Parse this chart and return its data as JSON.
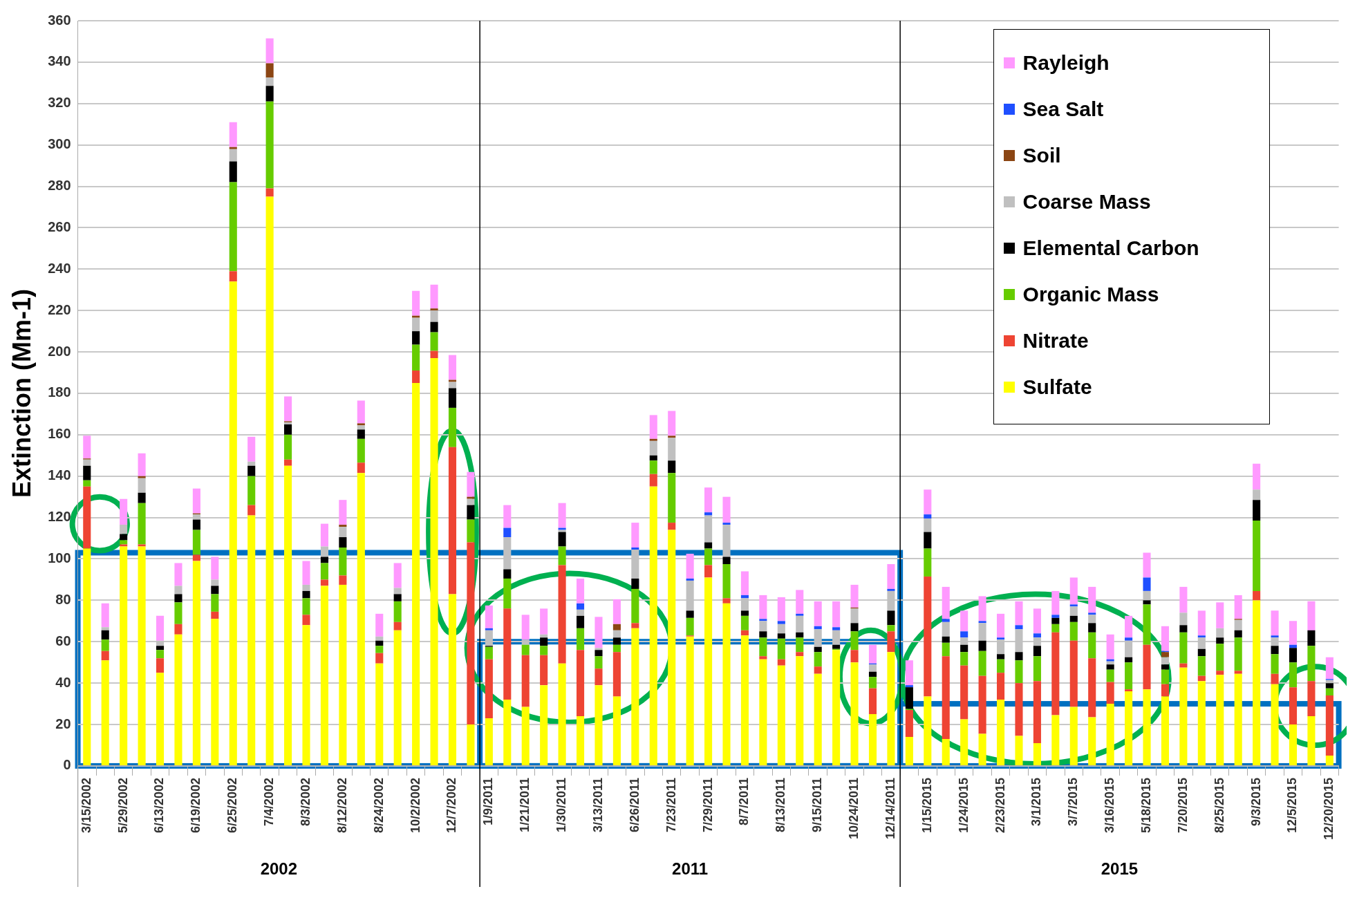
{
  "chart_data": {
    "type": "bar",
    "stacked": true,
    "ylabel": "Extinction (Mm-1)",
    "ylim": [
      0,
      360
    ],
    "yticks": [
      0,
      20,
      40,
      60,
      80,
      100,
      120,
      140,
      160,
      180,
      200,
      220,
      240,
      260,
      280,
      300,
      320,
      340,
      360
    ],
    "grid": "y",
    "legend": "top right",
    "annotations": [
      "2002",
      "2011",
      "2015"
    ],
    "categories": [
      "3/15/2002",
      null,
      "5/29/2002",
      null,
      "6/13/2002",
      null,
      "6/19/2002",
      null,
      "6/25/2002",
      null,
      "7/4/2002",
      null,
      "8/3/2002",
      null,
      "8/12/2002",
      null,
      "8/24/2002",
      null,
      "10/2/2002",
      null,
      "12/7/2002",
      null,
      "1/9/2011",
      null,
      "1/21/2011",
      null,
      "1/30/2011",
      null,
      "3/13/2011",
      null,
      "6/26/2011",
      null,
      "7/23/2011",
      null,
      "7/29/2011",
      null,
      "8/7/2011",
      null,
      "8/13/2011",
      null,
      "9/15/2011",
      null,
      "10/24/2011",
      null,
      "12/14/2011",
      null,
      "1/15/2015",
      null,
      "1/24/2015",
      null,
      "2/23/2015",
      null,
      "3/1/2015",
      null,
      "3/7/2015",
      null,
      "3/16/2015",
      null,
      "5/18/2015",
      null,
      "7/20/2015",
      null,
      "8/25/2015",
      null,
      "9/3/2015",
      null,
      "12/5/2015",
      null,
      "12/20/2015"
    ],
    "series": [
      {
        "name": "Sulfate",
        "color": "#ffff00",
        "values": [
          105,
          51,
          106,
          106,
          45,
          63.5,
          99,
          71,
          234,
          121,
          275,
          145,
          68,
          87,
          87.5,
          141.5,
          49.5,
          65.5,
          185,
          197,
          83,
          20,
          23,
          32,
          28.5,
          39,
          49.5,
          24,
          39,
          33.5,
          66.5,
          135,
          114,
          62.5,
          91,
          78.5,
          63,
          51.5,
          48.5,
          53,
          44.5,
          56,
          50,
          25,
          55,
          14,
          33.5,
          13,
          22.5,
          15.5,
          32,
          14.5,
          11,
          24.5,
          28.5,
          23.5,
          30,
          36,
          37,
          33.5,
          47.5,
          41,
          44,
          44.5,
          80,
          39.5,
          20,
          24,
          5
        ]
      },
      {
        "name": "Nitrate",
        "color": "#ee4433",
        "values": [
          30,
          4.5,
          1,
          1,
          7,
          5,
          3,
          3.5,
          5,
          5,
          4,
          3,
          5,
          3,
          4.5,
          5,
          5,
          4,
          6,
          3.5,
          71,
          88,
          28.5,
          44,
          25,
          14.5,
          47.5,
          32,
          8,
          21.5,
          2.5,
          6,
          3.5,
          0.5,
          6,
          2.5,
          2.5,
          1.5,
          3,
          2,
          3.5,
          0,
          6,
          12.5,
          10,
          13,
          58,
          40,
          26,
          28,
          13,
          25.5,
          30,
          40,
          32,
          28.5,
          10.5,
          1,
          21.5,
          6,
          2,
          2.5,
          2,
          1.5,
          4.5,
          5,
          18,
          17,
          29
        ]
      },
      {
        "name": "Organic Mass",
        "color": "#66cc00",
        "values": [
          3,
          5.5,
          2,
          20,
          4,
          10.5,
          12,
          8.5,
          43,
          14,
          42,
          12,
          8,
          8,
          13.5,
          11.5,
          3.5,
          10,
          12.5,
          9,
          19,
          11,
          6,
          14.5,
          5,
          4.5,
          9,
          10.5,
          6,
          3.5,
          16.5,
          6.5,
          24,
          8.5,
          8,
          16.5,
          7,
          9,
          10,
          7,
          7,
          0.5,
          9,
          5.5,
          3,
          0.5,
          13.5,
          6.5,
          6.5,
          12,
          6.5,
          11,
          12,
          4,
          9,
          12.5,
          6,
          13,
          19.5,
          7,
          15,
          9.5,
          13,
          16,
          34,
          9.5,
          12,
          17,
          3.5
        ]
      },
      {
        "name": "Elemental Carbon",
        "color": "#000000",
        "values": [
          7,
          4.5,
          3,
          5,
          2,
          4,
          5,
          4,
          10,
          5,
          7.5,
          5,
          3.5,
          3,
          5,
          4.5,
          2.5,
          3.5,
          6.5,
          5,
          9.5,
          7,
          0.5,
          4.5,
          0,
          4,
          7,
          6,
          3,
          3.5,
          5,
          2.5,
          6,
          3.5,
          3,
          3.5,
          2.5,
          3,
          2.5,
          2.5,
          2.5,
          2,
          4,
          2.5,
          7,
          10.5,
          8,
          3,
          3.5,
          5,
          2.5,
          4,
          5,
          3,
          3,
          4.5,
          2.5,
          2.5,
          2,
          2.5,
          3.5,
          3.5,
          3,
          3.5,
          10,
          4,
          7,
          7.5,
          2.5
        ]
      },
      {
        "name": "Coarse Mass",
        "color": "#c0c0c0",
        "values": [
          3,
          1.5,
          4.5,
          7,
          2.5,
          4,
          2.5,
          3,
          6,
          2,
          4,
          1,
          3,
          5,
          5,
          2,
          2,
          3,
          6.5,
          5.5,
          3,
          3,
          7.5,
          15.5,
          2.5,
          1.5,
          1,
          3,
          1,
          3.5,
          14,
          7,
          11,
          14.5,
          13,
          15.5,
          6,
          5,
          4.5,
          8,
          8.5,
          7,
          7,
          3.5,
          9.5,
          null,
          6.5,
          7,
          3.5,
          8.5,
          7,
          11,
          4,
          0,
          4.5,
          4,
          1.5,
          8,
          4.5,
          3.5,
          6,
          5.5,
          4.5,
          5,
          5,
          4,
          null,
          null,
          1.5
        ]
      },
      {
        "name": "Soil",
        "color": "#8b4513",
        "values": [
          0.5,
          0,
          0,
          1,
          0,
          0,
          0.5,
          0,
          1,
          0,
          7,
          0.5,
          0,
          0,
          1,
          1,
          0,
          0,
          1,
          1,
          1,
          1,
          0,
          0,
          0,
          0,
          0,
          0,
          0,
          3,
          0,
          1,
          1,
          0,
          0,
          0,
          0,
          0,
          0,
          0,
          0,
          0,
          0.5,
          0,
          0,
          0,
          0,
          0,
          0,
          0,
          0,
          0,
          0,
          0,
          0,
          0,
          0,
          0,
          0,
          2.5,
          0,
          0,
          0,
          0.5,
          0,
          0,
          0,
          0,
          0
        ]
      },
      {
        "name": "Sea Salt",
        "color": "#1f4fff",
        "values": [
          0,
          0,
          0,
          0,
          0,
          0,
          0,
          0,
          0,
          0,
          0,
          0,
          0,
          0,
          0,
          0,
          0,
          0,
          0,
          0,
          0,
          0,
          1,
          4.5,
          0,
          0,
          1,
          3,
          0,
          0,
          1,
          0,
          0,
          1,
          1.5,
          1,
          1.5,
          1,
          1.5,
          1,
          1.5,
          1.5,
          0,
          0.5,
          1,
          1,
          2,
          1.5,
          3,
          1,
          1,
          2,
          2,
          1.5,
          1,
          1,
          1,
          1.5,
          6.5,
          0.5,
          0,
          1,
          0,
          0,
          0,
          1,
          1.5,
          0,
          0.5
        ]
      },
      {
        "name": "Rayleigh",
        "color": "#ff99ff",
        "values": [
          11,
          11.5,
          12.5,
          11,
          12,
          11,
          12,
          11,
          12,
          12,
          12,
          12,
          11.5,
          11,
          12,
          11,
          11,
          12,
          12,
          11.5,
          12,
          12,
          11,
          11,
          12,
          12.5,
          12,
          12,
          15,
          12,
          12,
          11.5,
          12,
          12,
          12,
          12.5,
          11.5,
          11.5,
          11.5,
          11.5,
          12,
          12.5,
          11,
          9,
          12,
          12,
          12,
          15.5,
          10,
          12,
          11.5,
          11.5,
          12,
          11.5,
          13,
          12.5,
          12,
          10.5,
          12,
          12,
          12.5,
          12,
          12.5,
          11.5,
          12.5,
          12,
          11.5,
          14,
          10.5
        ]
      }
    ]
  }
}
